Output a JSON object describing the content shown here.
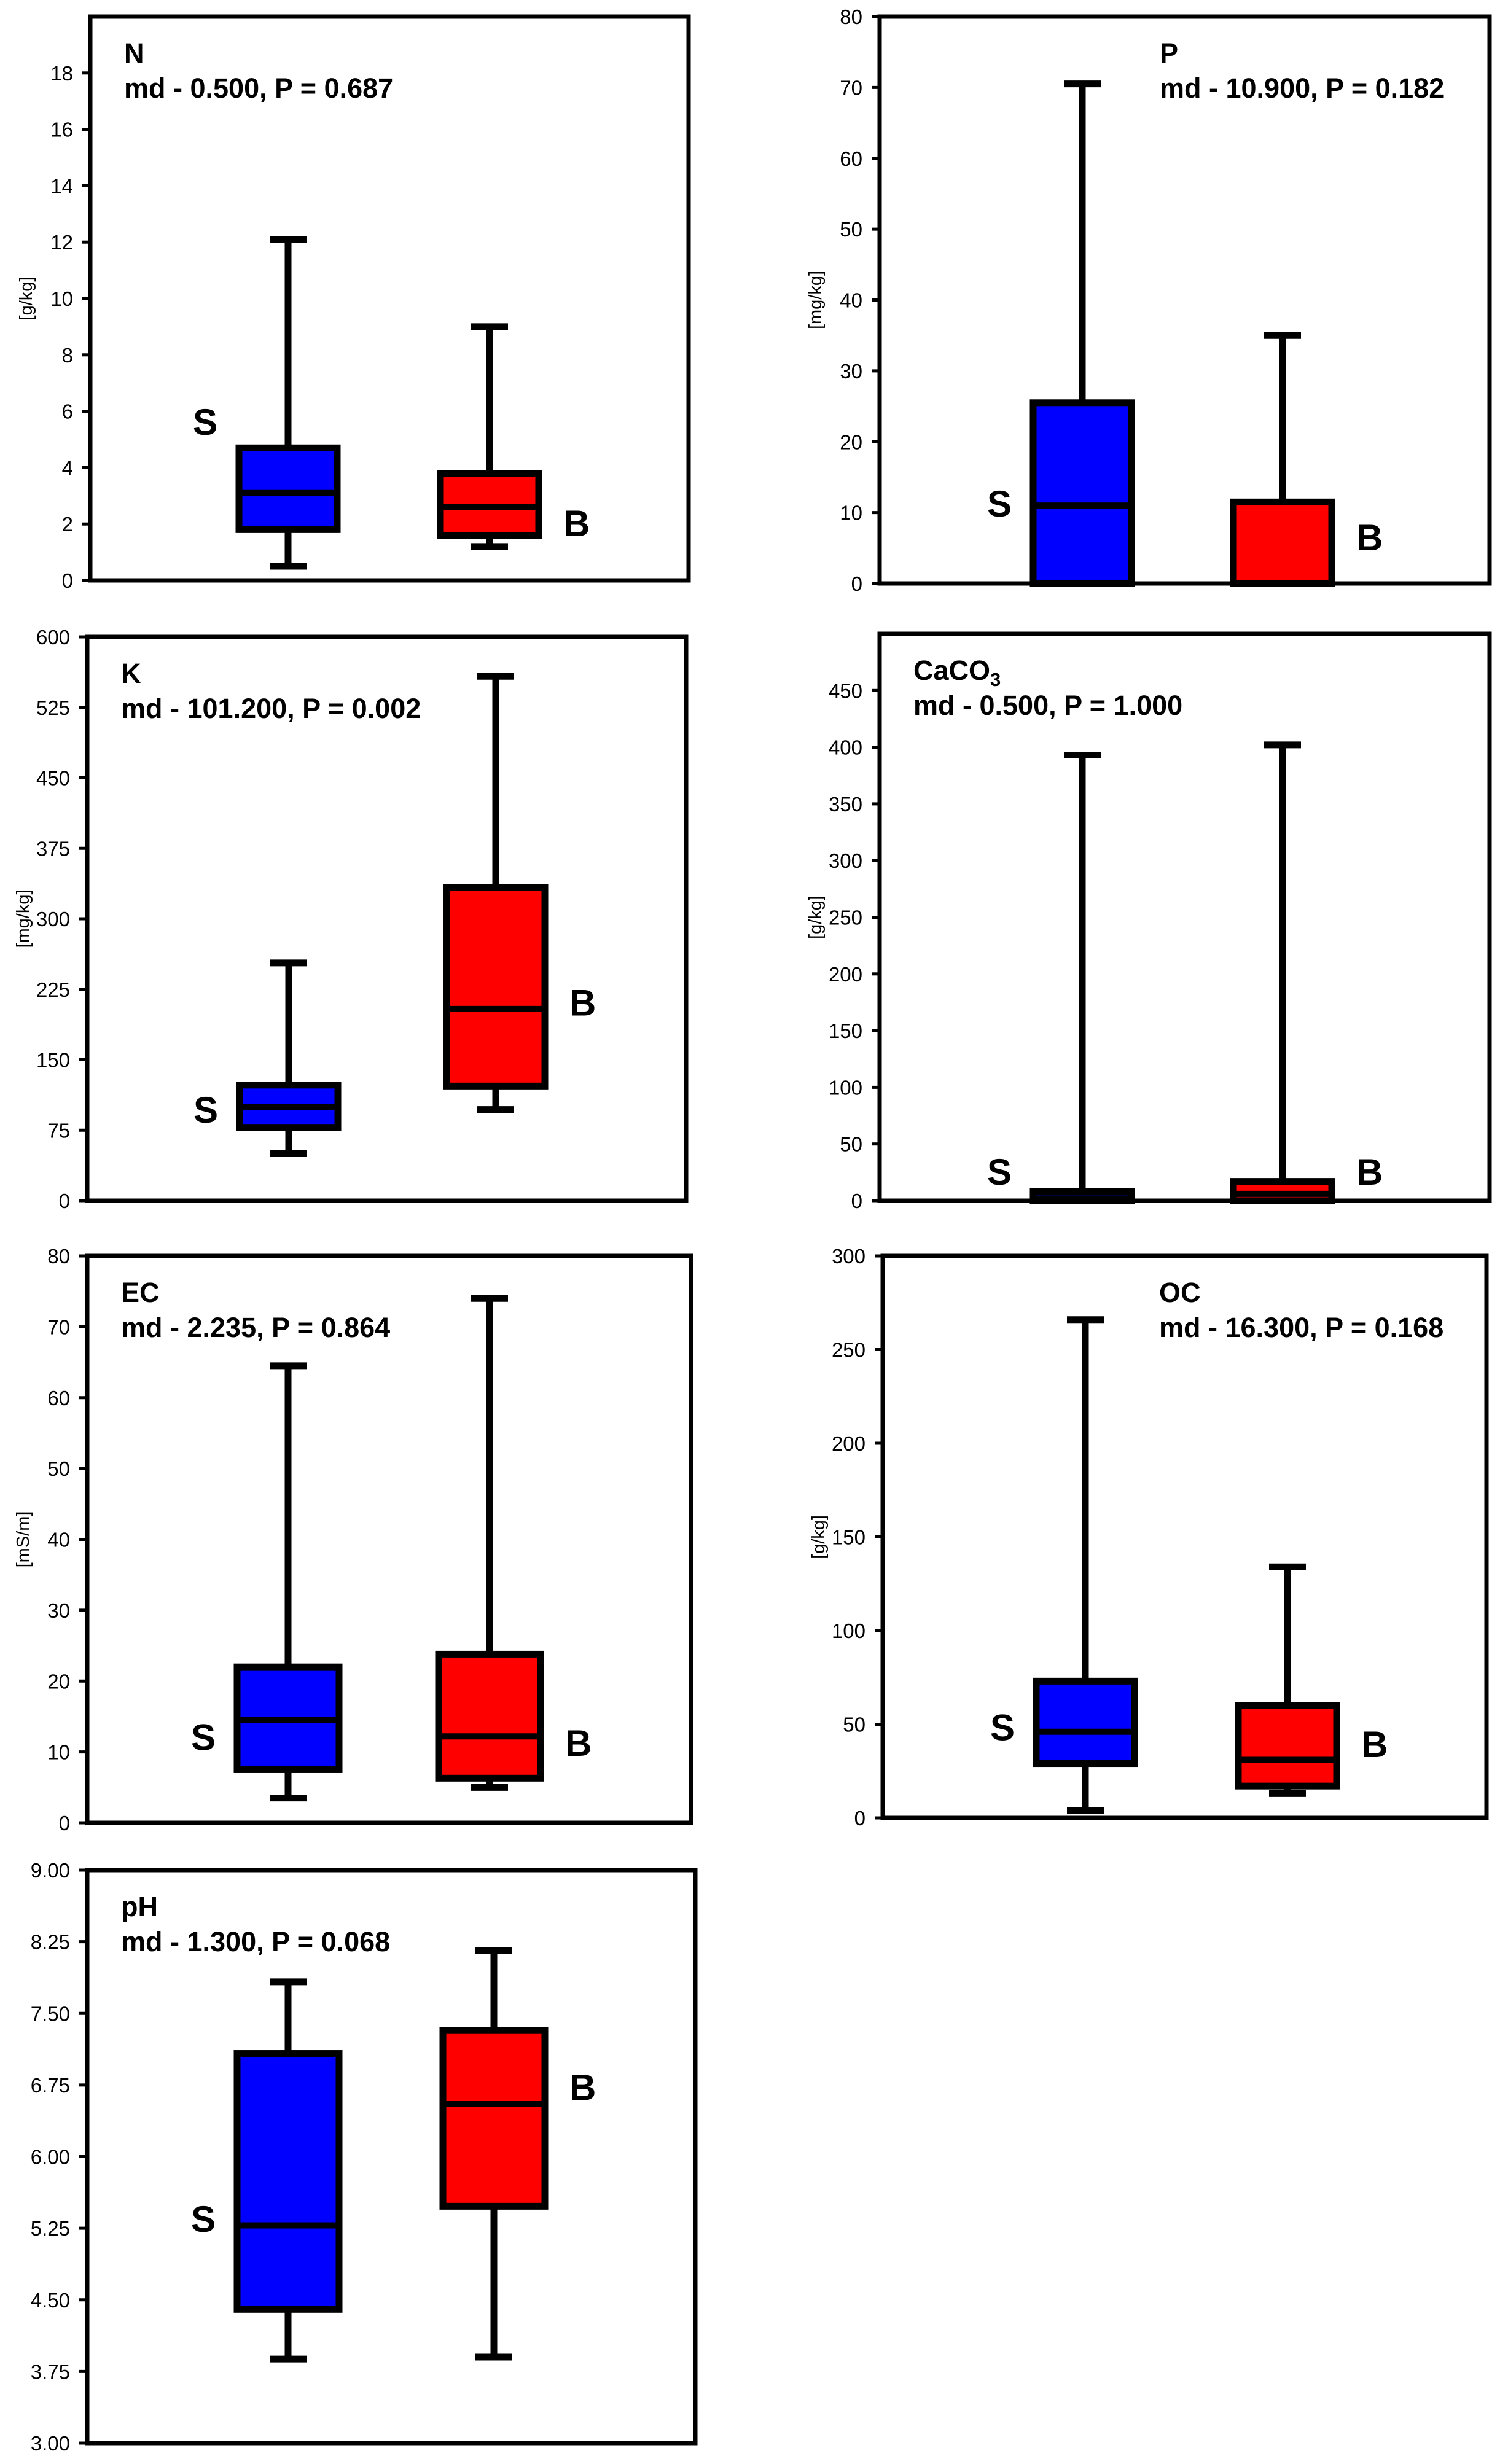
{
  "colors": {
    "blue": "#0000ff",
    "red": "#ff0000",
    "line": "#000000"
  },
  "chart_data": [
    {
      "type": "box",
      "id": "n",
      "title": "N",
      "subtitle": "md - 0.500, P = 0.687",
      "ylabel": "[g/kg]",
      "ylim": [
        0,
        20
      ],
      "yticks": [
        0,
        2,
        4,
        6,
        8,
        10,
        12,
        14,
        16,
        18
      ],
      "tick_labels": [
        "0",
        "2",
        "4",
        "6",
        "8",
        "10",
        "12",
        "14",
        "16",
        "18"
      ],
      "series": [
        {
          "name": "S",
          "color": "blue",
          "min": 0.5,
          "q1": 1.8,
          "median": 3.1,
          "q3": 4.7,
          "max": 12.1
        },
        {
          "name": "B",
          "color": "red",
          "min": 1.2,
          "q1": 1.6,
          "median": 2.6,
          "q3": 3.8,
          "max": 9.0
        }
      ]
    },
    {
      "type": "box",
      "id": "p",
      "title": "P",
      "subtitle": "md - 10.900, P = 0.182",
      "ylabel": "[mg/kg]",
      "ylim": [
        0,
        80
      ],
      "yticks": [
        0,
        10,
        20,
        30,
        40,
        50,
        60,
        70,
        80
      ],
      "tick_labels": [
        "0",
        "10",
        "20",
        "30",
        "40",
        "50",
        "60",
        "70",
        "80"
      ],
      "series": [
        {
          "name": "S",
          "color": "blue",
          "min": 0,
          "q1": 0,
          "median": 11,
          "q3": 25.5,
          "max": 70.5
        },
        {
          "name": "B",
          "color": "red",
          "min": 0,
          "q1": 0,
          "median": 0,
          "q3": 11.5,
          "max": 35
        }
      ]
    },
    {
      "type": "box",
      "id": "k",
      "title": "K",
      "subtitle": "md - 101.200, P = 0.002",
      "ylabel": "[mg/kg]",
      "ylim": [
        0,
        600
      ],
      "yticks": [
        0,
        75,
        150,
        225,
        300,
        375,
        450,
        525,
        600
      ],
      "tick_labels": [
        "0",
        "75",
        "150",
        "225",
        "300",
        "375",
        "450",
        "525",
        "600"
      ],
      "series": [
        {
          "name": "S",
          "color": "blue",
          "min": 50,
          "q1": 78,
          "median": 100,
          "q3": 123,
          "max": 253
        },
        {
          "name": "B",
          "color": "red",
          "min": 97,
          "q1": 122,
          "median": 204,
          "q3": 333,
          "max": 558
        }
      ]
    },
    {
      "type": "box",
      "id": "caco3",
      "title": "CaCO",
      "title_sub": "3",
      "subtitle": "md - 0.500, P = 1.000",
      "ylabel": "[g/kg]",
      "ylim": [
        0,
        500
      ],
      "yticks": [
        0,
        50,
        100,
        150,
        200,
        250,
        300,
        350,
        400,
        450
      ],
      "tick_labels": [
        "0",
        "50",
        "100",
        "150",
        "200",
        "250",
        "300",
        "350",
        "400",
        "450"
      ],
      "series": [
        {
          "name": "S",
          "color": "blue",
          "min": 0,
          "q1": 0,
          "median": 2,
          "q3": 8,
          "max": 393
        },
        {
          "name": "B",
          "color": "red",
          "min": 0,
          "q1": 0,
          "median": 6,
          "q3": 17,
          "max": 402
        }
      ]
    },
    {
      "type": "box",
      "id": "ec",
      "title": "EC",
      "subtitle": "md - 2.235, P = 0.864",
      "ylabel": "[mS/m]",
      "ylim": [
        0,
        80
      ],
      "yticks": [
        0,
        10,
        20,
        30,
        40,
        50,
        60,
        70,
        80
      ],
      "tick_labels": [
        "0",
        "10",
        "20",
        "30",
        "40",
        "50",
        "60",
        "70",
        "80"
      ],
      "series": [
        {
          "name": "S",
          "color": "blue",
          "min": 3.5,
          "q1": 7.5,
          "median": 14.5,
          "q3": 22,
          "max": 64.5
        },
        {
          "name": "B",
          "color": "red",
          "min": 5,
          "q1": 6.3,
          "median": 12.2,
          "q3": 23.8,
          "max": 74
        }
      ]
    },
    {
      "type": "box",
      "id": "oc",
      "title": "OC",
      "subtitle": "md - 16.300, P = 0.168",
      "ylabel": "[g/kg]",
      "ylim": [
        0,
        300
      ],
      "yticks": [
        0,
        50,
        100,
        150,
        200,
        250,
        300
      ],
      "tick_labels": [
        "0",
        "50",
        "100",
        "150",
        "200",
        "250",
        "300"
      ],
      "series": [
        {
          "name": "S",
          "color": "blue",
          "min": 4,
          "q1": 29,
          "median": 46,
          "q3": 73,
          "max": 266
        },
        {
          "name": "B",
          "color": "red",
          "min": 13,
          "q1": 17,
          "median": 31,
          "q3": 60,
          "max": 134
        }
      ]
    },
    {
      "type": "box",
      "id": "ph",
      "title": "pH",
      "subtitle": "md - 1.300, P = 0.068",
      "ylabel": "",
      "ylim": [
        3,
        9
      ],
      "yticks": [
        3,
        3.75,
        4.5,
        5.25,
        6,
        6.75,
        7.5,
        8.25,
        9
      ],
      "tick_labels": [
        "3.00",
        "3.75",
        "4.50",
        "5.25",
        "6.00",
        "6.75",
        "7.50",
        "8.25",
        "9.00"
      ],
      "series": [
        {
          "name": "S",
          "color": "blue",
          "min": 3.88,
          "q1": 4.4,
          "median": 5.28,
          "q3": 7.08,
          "max": 7.83
        },
        {
          "name": "B",
          "color": "red",
          "min": 3.9,
          "q1": 5.48,
          "median": 6.55,
          "q3": 7.32,
          "max": 8.16
        }
      ]
    }
  ]
}
